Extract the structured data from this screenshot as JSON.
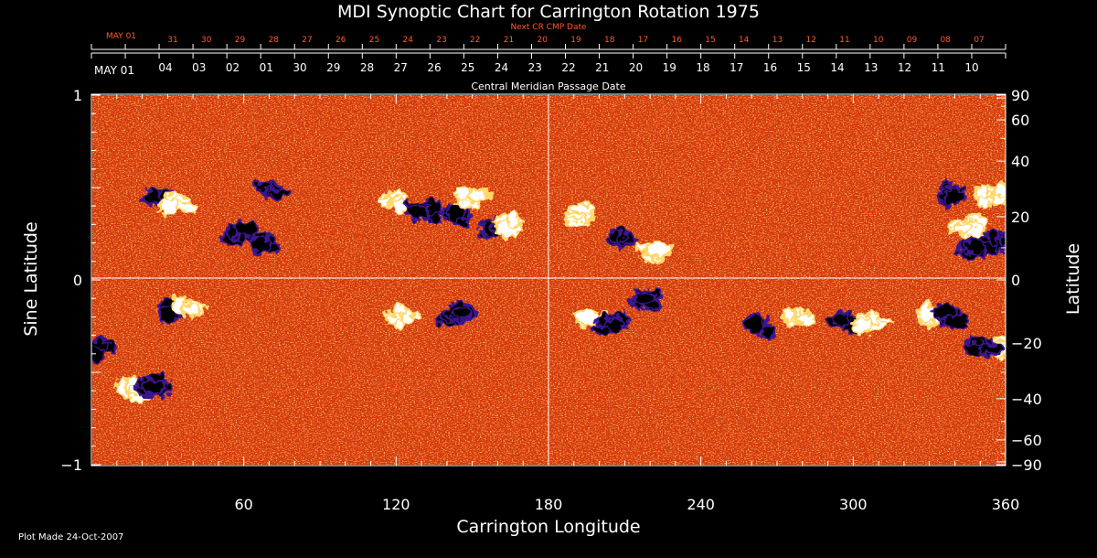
{
  "chart_data": {
    "type": "heatmap",
    "title": "MDI Synoptic Chart for Carrington Rotation 1975",
    "xlabel": "Carrington Longitude",
    "ylabel_left": "Sine Latitude",
    "ylabel_right": "Latitude",
    "xlim": [
      0,
      360
    ],
    "ylim": [
      -1,
      1
    ],
    "x_ticks": [
      60,
      120,
      180,
      240,
      300,
      360
    ],
    "y_left_ticks": [
      {
        "v": 1,
        "label": "1"
      },
      {
        "v": 0,
        "label": "0"
      },
      {
        "v": -1,
        "label": "−1"
      }
    ],
    "y_right_ticks": [
      90,
      60,
      40,
      20,
      0,
      -20,
      -40,
      -60,
      -90
    ],
    "next_cr_label": "Next CR CMP Date",
    "next_cr_start": "MAY 01",
    "next_cr_dates": [
      "31",
      "30",
      "29",
      "28",
      "27",
      "26",
      "25",
      "24",
      "23",
      "22",
      "21",
      "20",
      "19",
      "18",
      "17",
      "16",
      "15",
      "14",
      "13",
      "12",
      "11",
      "10",
      "09",
      "08",
      "07"
    ],
    "cmp_start": "MAY 01",
    "cmp_dates": [
      "04",
      "03",
      "02",
      "01",
      "30",
      "29",
      "28",
      "27",
      "26",
      "25",
      "24",
      "23",
      "22",
      "21",
      "20",
      "19",
      "18",
      "17",
      "16",
      "15",
      "14",
      "13",
      "12",
      "11",
      "10"
    ],
    "cmp_label": "Central Meridian Passage Date",
    "footer": "Plot Made 24-Oct-2007",
    "colors": {
      "background": "#000000",
      "text": "#ffffff",
      "next_cr_text": "#ff5a28",
      "field_base": "#d83a08",
      "positive": "#ffffff",
      "negative": "#000000",
      "negative_edge": "#3a1890"
    },
    "active_regions": [
      {
        "lon": 27,
        "sinlat": 0.44,
        "pol": -1
      },
      {
        "lon": 34,
        "sinlat": 0.42,
        "pol": 1
      },
      {
        "lon": 58,
        "sinlat": 0.26,
        "pol": -1
      },
      {
        "lon": 68,
        "sinlat": 0.2,
        "pol": -1
      },
      {
        "lon": 70,
        "sinlat": 0.48,
        "pol": -1
      },
      {
        "lon": 120,
        "sinlat": 0.42,
        "pol": 1
      },
      {
        "lon": 132,
        "sinlat": 0.38,
        "pol": -1
      },
      {
        "lon": 145,
        "sinlat": 0.35,
        "pol": -1
      },
      {
        "lon": 158,
        "sinlat": 0.27,
        "pol": -1
      },
      {
        "lon": 150,
        "sinlat": 0.45,
        "pol": 1
      },
      {
        "lon": 163,
        "sinlat": 0.3,
        "pol": 1
      },
      {
        "lon": 193,
        "sinlat": 0.36,
        "pol": 1
      },
      {
        "lon": 209,
        "sinlat": 0.23,
        "pol": -1
      },
      {
        "lon": 222,
        "sinlat": 0.16,
        "pol": 1
      },
      {
        "lon": 338,
        "sinlat": 0.47,
        "pol": -1
      },
      {
        "lon": 355,
        "sinlat": 0.46,
        "pol": 1
      },
      {
        "lon": 345,
        "sinlat": 0.3,
        "pol": 1
      },
      {
        "lon": 358,
        "sinlat": 0.22,
        "pol": -1
      },
      {
        "lon": 348,
        "sinlat": 0.16,
        "pol": -1
      },
      {
        "lon": 3,
        "sinlat": -0.38,
        "pol": -1
      },
      {
        "lon": 33,
        "sinlat": -0.17,
        "pol": -1
      },
      {
        "lon": 38,
        "sinlat": -0.16,
        "pol": 1
      },
      {
        "lon": 17,
        "sinlat": -0.6,
        "pol": 1
      },
      {
        "lon": 24,
        "sinlat": -0.58,
        "pol": -1
      },
      {
        "lon": 121,
        "sinlat": -0.19,
        "pol": 1
      },
      {
        "lon": 143,
        "sinlat": -0.2,
        "pol": -1
      },
      {
        "lon": 198,
        "sinlat": -0.22,
        "pol": 1
      },
      {
        "lon": 204,
        "sinlat": -0.24,
        "pol": -1
      },
      {
        "lon": 217,
        "sinlat": -0.1,
        "pol": -1
      },
      {
        "lon": 262,
        "sinlat": -0.25,
        "pol": -1
      },
      {
        "lon": 278,
        "sinlat": -0.21,
        "pol": 1
      },
      {
        "lon": 296,
        "sinlat": -0.23,
        "pol": -1
      },
      {
        "lon": 307,
        "sinlat": -0.23,
        "pol": 1
      },
      {
        "lon": 330,
        "sinlat": -0.19,
        "pol": 1
      },
      {
        "lon": 338,
        "sinlat": -0.2,
        "pol": -1
      },
      {
        "lon": 357,
        "sinlat": -0.38,
        "pol": 1
      },
      {
        "lon": 352,
        "sinlat": -0.36,
        "pol": -1
      }
    ]
  }
}
